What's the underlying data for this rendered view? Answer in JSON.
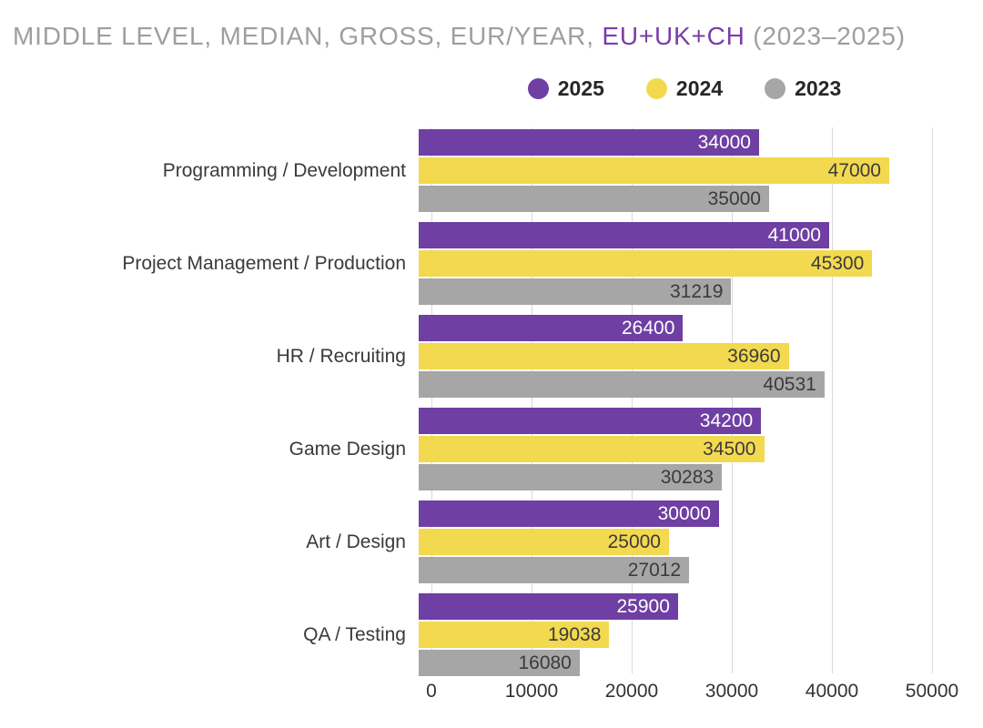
{
  "title": {
    "prefix": "MIDDLE LEVEL, MEDIAN, GROSS, EUR/YEAR, ",
    "highlight": "EU+UK+CH",
    "suffix": " (2023–2025)"
  },
  "colors": {
    "purple": "#6f3fa3",
    "yellow": "#f2d94f",
    "gray": "#a6a6a6",
    "title_gray": "#9e9e9e",
    "title_purple": "#7a3daa",
    "gridline": "#d9d9d9",
    "dark_label": "#3b3b3b",
    "white_label": "#ffffff"
  },
  "legend": [
    {
      "label": "2025",
      "color": "#6f3fa3"
    },
    {
      "label": "2024",
      "color": "#f2d94f"
    },
    {
      "label": "2023",
      "color": "#a6a6a6"
    }
  ],
  "chart_data": {
    "type": "bar",
    "orientation": "horizontal",
    "title": "MIDDLE LEVEL, MEDIAN, GROSS, EUR/YEAR, EU+UK+CH (2023–2025)",
    "categories": [
      "Programming / Development",
      "Project Management / Production",
      "HR / Recruiting",
      "Game Design",
      "Art / Design",
      "QA / Testing"
    ],
    "series": [
      {
        "name": "2025",
        "color": "#6f3fa3",
        "label_color": "#ffffff",
        "values": [
          34000,
          41000,
          26400,
          34200,
          30000,
          25900
        ]
      },
      {
        "name": "2024",
        "color": "#f2d94f",
        "label_color": "#3b3b3b",
        "values": [
          47000,
          45300,
          36960,
          34500,
          25000,
          19038
        ]
      },
      {
        "name": "2023",
        "color": "#a6a6a6",
        "label_color": "#3b3b3b",
        "values": [
          35000,
          31219,
          40531,
          30283,
          27012,
          16080
        ]
      }
    ],
    "x_ticks": [
      0,
      10000,
      20000,
      30000,
      40000,
      50000
    ],
    "xlim": [
      0,
      50000
    ],
    "grid": true,
    "legend_position": "top",
    "value_labels": "inside-end"
  }
}
